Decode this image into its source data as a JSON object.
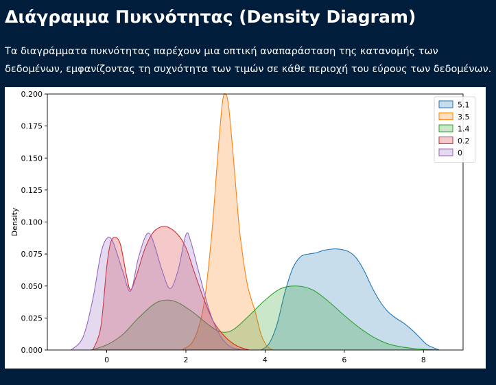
{
  "page": {
    "title": "Διάγραμμα Πυκνότητας (Density Diagram)",
    "description": "Τα διαγράμματα πυκνότητας παρέχουν μια οπτική αναπαράσταση της κατανομής των δεδομένων, εμφανίζοντας τη συχνότητα των τιμών σε κάθε περιοχή του εύρους των δεδομένων."
  },
  "chart_data": {
    "type": "area",
    "chart_kind": "kde density",
    "title": "",
    "xlabel": "",
    "ylabel": "Density",
    "xlim": [
      -1.5,
      9
    ],
    "ylim": [
      0,
      0.2
    ],
    "xticks": [
      0,
      2,
      4,
      6,
      8
    ],
    "yticks": [
      "0.000",
      "0.025",
      "0.050",
      "0.075",
      "0.100",
      "0.125",
      "0.150",
      "0.175",
      "0.200"
    ],
    "grid": false,
    "legend_position": "upper right",
    "series": [
      {
        "name": "5.1",
        "color": "#1f77b4",
        "points": [
          [
            3.9,
            0.0
          ],
          [
            4.1,
            0.005
          ],
          [
            4.3,
            0.02
          ],
          [
            4.5,
            0.045
          ],
          [
            4.7,
            0.064
          ],
          [
            4.9,
            0.073
          ],
          [
            5.1,
            0.075
          ],
          [
            5.3,
            0.076
          ],
          [
            5.5,
            0.078
          ],
          [
            5.8,
            0.079
          ],
          [
            6.1,
            0.077
          ],
          [
            6.3,
            0.072
          ],
          [
            6.5,
            0.062
          ],
          [
            6.7,
            0.049
          ],
          [
            6.9,
            0.038
          ],
          [
            7.1,
            0.03
          ],
          [
            7.3,
            0.025
          ],
          [
            7.5,
            0.021
          ],
          [
            7.7,
            0.016
          ],
          [
            7.9,
            0.01
          ],
          [
            8.1,
            0.004
          ],
          [
            8.4,
            0.0
          ]
        ]
      },
      {
        "name": "3.5",
        "color": "#ff7f0e",
        "points": [
          [
            1.9,
            0.0
          ],
          [
            2.2,
            0.008
          ],
          [
            2.45,
            0.035
          ],
          [
            2.65,
            0.09
          ],
          [
            2.8,
            0.15
          ],
          [
            2.92,
            0.193
          ],
          [
            3.0,
            0.2
          ],
          [
            3.08,
            0.19
          ],
          [
            3.2,
            0.15
          ],
          [
            3.35,
            0.095
          ],
          [
            3.5,
            0.06
          ],
          [
            3.6,
            0.045
          ],
          [
            3.75,
            0.03
          ],
          [
            3.9,
            0.012
          ],
          [
            4.05,
            0.003
          ],
          [
            4.2,
            0.0
          ]
        ]
      },
      {
        "name": "1.4",
        "color": "#2ca02c",
        "points": [
          [
            -0.4,
            0.0
          ],
          [
            0.0,
            0.004
          ],
          [
            0.4,
            0.012
          ],
          [
            0.8,
            0.025
          ],
          [
            1.2,
            0.036
          ],
          [
            1.5,
            0.039
          ],
          [
            1.8,
            0.037
          ],
          [
            2.2,
            0.029
          ],
          [
            2.6,
            0.019
          ],
          [
            2.9,
            0.014
          ],
          [
            3.2,
            0.016
          ],
          [
            3.6,
            0.027
          ],
          [
            4.0,
            0.039
          ],
          [
            4.4,
            0.048
          ],
          [
            4.8,
            0.05
          ],
          [
            5.2,
            0.047
          ],
          [
            5.6,
            0.038
          ],
          [
            6.0,
            0.027
          ],
          [
            6.4,
            0.017
          ],
          [
            6.8,
            0.009
          ],
          [
            7.2,
            0.004
          ],
          [
            7.8,
            0.001
          ],
          [
            8.4,
            0.0
          ]
        ]
      },
      {
        "name": "0.2",
        "color": "#d62728",
        "points": [
          [
            -0.35,
            0.0
          ],
          [
            -0.15,
            0.018
          ],
          [
            0.0,
            0.065
          ],
          [
            0.1,
            0.084
          ],
          [
            0.22,
            0.088
          ],
          [
            0.35,
            0.082
          ],
          [
            0.5,
            0.058
          ],
          [
            0.6,
            0.047
          ],
          [
            0.75,
            0.058
          ],
          [
            0.95,
            0.078
          ],
          [
            1.15,
            0.091
          ],
          [
            1.35,
            0.096
          ],
          [
            1.55,
            0.096
          ],
          [
            1.8,
            0.09
          ],
          [
            2.0,
            0.08
          ],
          [
            2.2,
            0.062
          ],
          [
            2.45,
            0.04
          ],
          [
            2.7,
            0.022
          ],
          [
            3.0,
            0.01
          ],
          [
            3.3,
            0.003
          ],
          [
            3.6,
            0.0
          ]
        ]
      },
      {
        "name": "0",
        "color": "#9467bd",
        "points": [
          [
            -0.9,
            0.0
          ],
          [
            -0.6,
            0.01
          ],
          [
            -0.35,
            0.04
          ],
          [
            -0.15,
            0.075
          ],
          [
            0.0,
            0.087
          ],
          [
            0.15,
            0.085
          ],
          [
            0.4,
            0.062
          ],
          [
            0.6,
            0.046
          ],
          [
            0.8,
            0.072
          ],
          [
            1.0,
            0.09
          ],
          [
            1.15,
            0.087
          ],
          [
            1.4,
            0.062
          ],
          [
            1.6,
            0.048
          ],
          [
            1.8,
            0.062
          ],
          [
            2.0,
            0.09
          ],
          [
            2.12,
            0.085
          ],
          [
            2.35,
            0.058
          ],
          [
            2.6,
            0.03
          ],
          [
            2.85,
            0.012
          ],
          [
            3.1,
            0.003
          ],
          [
            3.4,
            0.0
          ]
        ]
      }
    ]
  }
}
